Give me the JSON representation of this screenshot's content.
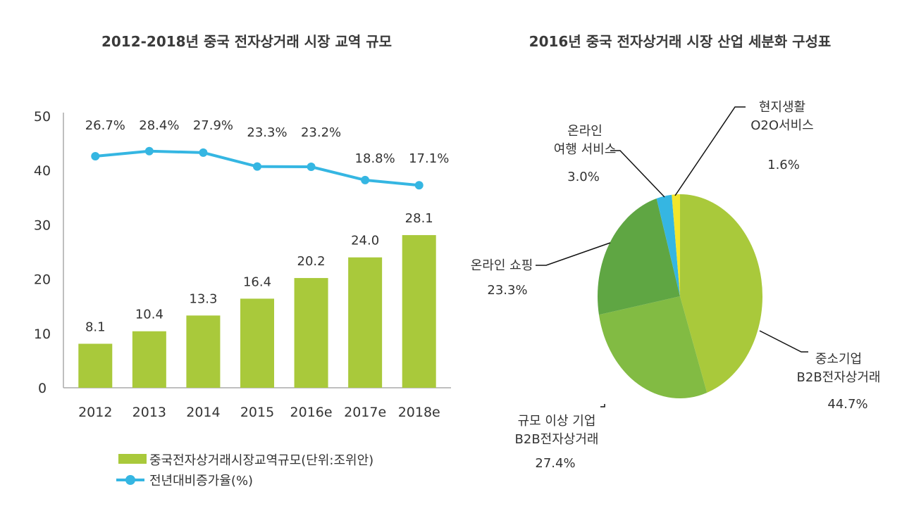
{
  "chart_data": [
    {
      "type": "bar+line",
      "title": "2012-2018년 중국 전자상거래 시장 교역 규모",
      "categories": [
        "2012",
        "2013",
        "2014",
        "2015",
        "2016e",
        "2017e",
        "2018e"
      ],
      "ylim": [
        0,
        50
      ],
      "yticks": [
        "0",
        "10",
        "20",
        "30",
        "40",
        "50"
      ],
      "y2lim": [
        -50,
        40
      ],
      "grid": false,
      "legend_position": "bottom",
      "series": [
        {
          "name": "중국전자상거래시장교역규모(단위:조위안)",
          "type": "bar",
          "color": "#a9c93b",
          "values": [
            8.1,
            10.4,
            13.3,
            16.4,
            20.2,
            24.0,
            28.1
          ],
          "labels": [
            "8.1",
            "10.4",
            "13.3",
            "16.4",
            "20.2",
            "24.0",
            "28.1"
          ]
        },
        {
          "name": "전년대비증가율(%)",
          "type": "line",
          "axis": "secondary",
          "color": "#35b6e2",
          "values": [
            26.7,
            28.4,
            27.9,
            23.3,
            23.2,
            18.8,
            17.1
          ],
          "labels": [
            "26.7%",
            "28.4%",
            "27.9%",
            "23.3%",
            "23.2%",
            "18.8%",
            "17.1%"
          ]
        }
      ]
    },
    {
      "type": "pie",
      "title": "2016년 중국 전자상거래 시장 산업 세분화 구성표",
      "slices": [
        {
          "label": [
            "중소기업",
            "B2B전자상거래"
          ],
          "value": 44.7,
          "text": "44.7%",
          "color": "#a9c93b"
        },
        {
          "label": [
            "규모 이상 기업",
            "B2B전자상거래"
          ],
          "value": 27.4,
          "text": "27.4%",
          "color": "#82bb43"
        },
        {
          "label": [
            "온라인 쇼핑"
          ],
          "value": 23.3,
          "text": "23.3%",
          "color": "#5fa643"
        },
        {
          "label": [
            "온라인",
            "여행 서비스"
          ],
          "value": 3.0,
          "text": "3.0%",
          "color": "#35b6e2"
        },
        {
          "label": [
            "현지생활",
            "O2O서비스"
          ],
          "value": 1.6,
          "text": "1.6%",
          "color": "#f2e62c"
        }
      ]
    }
  ]
}
